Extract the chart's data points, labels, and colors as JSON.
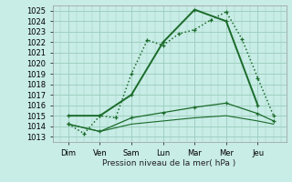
{
  "background_color": "#c8ece6",
  "grid_color": "#99ccbb",
  "line_color": "#1a6b2a",
  "xlabel": "Pression niveau de la mer( hPa )",
  "x_labels": [
    "Dim",
    "Ven",
    "Sam",
    "Lun",
    "Mar",
    "Mer",
    "Jeu"
  ],
  "ylim": [
    1012.5,
    1025.5
  ],
  "yticks": [
    1013,
    1014,
    1015,
    1016,
    1017,
    1018,
    1019,
    1020,
    1021,
    1022,
    1023,
    1024,
    1025
  ],
  "lines": [
    {
      "x": [
        0,
        0.5,
        1,
        1.5,
        2,
        2.5,
        3,
        3.5,
        4,
        4.5,
        5,
        5.5,
        6,
        6.5
      ],
      "y": [
        1014.2,
        1013.3,
        1015.0,
        1014.8,
        1019.0,
        1022.2,
        1021.7,
        1022.8,
        1023.2,
        1024.1,
        1024.9,
        1022.3,
        1018.6,
        1015.0
      ],
      "linestyle": ":",
      "linewidth": 1.1,
      "marker": "+",
      "markersize": 3
    },
    {
      "x": [
        0,
        1,
        2,
        3,
        4,
        5,
        6
      ],
      "y": [
        1015.0,
        1015.0,
        1017.0,
        1022.0,
        1025.1,
        1024.0,
        1016.0
      ],
      "linestyle": "-",
      "linewidth": 1.4,
      "marker": "+",
      "markersize": 3
    },
    {
      "x": [
        0,
        1,
        2,
        3,
        4,
        5,
        6,
        6.5
      ],
      "y": [
        1014.2,
        1013.5,
        1014.8,
        1015.3,
        1015.8,
        1016.2,
        1015.2,
        1014.5
      ],
      "linestyle": "-",
      "linewidth": 0.9,
      "marker": "+",
      "markersize": 2.5
    },
    {
      "x": [
        0,
        1,
        2,
        3,
        4,
        5,
        6,
        6.5
      ],
      "y": [
        1014.2,
        1013.5,
        1014.2,
        1014.5,
        1014.8,
        1015.0,
        1014.5,
        1014.2
      ],
      "linestyle": "-",
      "linewidth": 0.8,
      "marker": null,
      "markersize": 0
    }
  ]
}
